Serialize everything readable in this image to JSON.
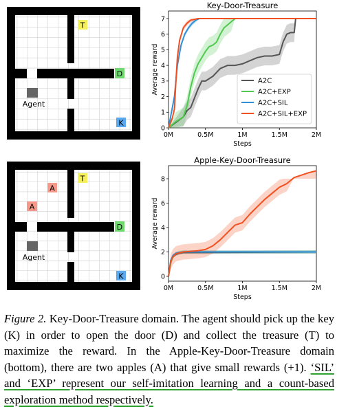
{
  "colors": {
    "wall": "#000000",
    "floor_grid": "#d0d0d0",
    "treasure": "#f3f05c",
    "door": "#6fd86f",
    "key": "#5aa9ee",
    "apple": "#f59a8a",
    "agent": "#666666",
    "a2c": "#555555",
    "a2c_exp": "#4fc94f",
    "a2c_sil": "#2f8fd8",
    "a2c_sil_exp": "#f25020"
  },
  "maps": [
    {
      "cells": [
        {
          "letter": "T",
          "kind": "treasure"
        },
        {
          "letter": "D",
          "kind": "door"
        },
        {
          "letter": "K",
          "kind": "key"
        }
      ],
      "agent_label": "Agent"
    },
    {
      "cells": [
        {
          "letter": "T",
          "kind": "treasure"
        },
        {
          "letter": "A",
          "kind": "apple"
        },
        {
          "letter": "A",
          "kind": "apple"
        },
        {
          "letter": "D",
          "kind": "door"
        },
        {
          "letter": "K",
          "kind": "key"
        }
      ],
      "agent_label": "Agent"
    }
  ],
  "chart_data": [
    {
      "type": "line",
      "title": "Key-Door-Treasure",
      "xlabel": "Steps",
      "ylabel": "Average reward",
      "xlim": [
        0,
        2
      ],
      "ylim": [
        0,
        7
      ],
      "x_ticks": [
        "0M",
        "0.5M",
        "1M",
        "1.5M",
        "2M"
      ],
      "y_ticks": [
        "0",
        "1",
        "2",
        "3",
        "4",
        "5",
        "6",
        "7"
      ],
      "legend_position": "bottom-right",
      "series": [
        {
          "name": "A2C",
          "color_key": "a2c",
          "x": [
            0,
            0.2,
            0.25,
            0.3,
            0.4,
            0.45,
            0.5,
            0.6,
            0.7,
            0.8,
            0.9,
            1.0,
            1.1,
            1.2,
            1.3,
            1.4,
            1.5,
            1.55,
            1.6,
            1.65,
            1.7,
            1.72,
            1.8,
            2.0
          ],
          "y": [
            0,
            0.7,
            1.1,
            1.3,
            2.5,
            3.0,
            3.0,
            3.3,
            3.8,
            4.0,
            4.0,
            4.1,
            4.3,
            4.5,
            4.6,
            4.6,
            4.7,
            5.5,
            6.0,
            6.1,
            6.1,
            7.0,
            7.0,
            7.0
          ]
        },
        {
          "name": "A2C+EXP",
          "color_key": "a2c_exp",
          "x": [
            0,
            0.1,
            0.2,
            0.25,
            0.3,
            0.35,
            0.4,
            0.45,
            0.5,
            0.55,
            0.6,
            0.65,
            0.7,
            0.75,
            0.8,
            0.85,
            0.9,
            2.0
          ],
          "y": [
            0,
            0.4,
            0.7,
            1.4,
            2.6,
            3.5,
            4.1,
            4.5,
            4.9,
            5.2,
            5.3,
            5.5,
            6.0,
            6.4,
            6.6,
            6.8,
            7.0,
            7.0
          ]
        },
        {
          "name": "A2C+SIL",
          "color_key": "a2c_sil",
          "x": [
            0,
            0.08,
            0.12,
            0.17,
            0.22,
            0.27,
            0.32,
            0.37,
            0.42,
            0.5,
            2.0
          ],
          "y": [
            0,
            2.0,
            4.0,
            5.3,
            6.0,
            6.4,
            6.7,
            6.9,
            7.0,
            7.0,
            7.0
          ]
        },
        {
          "name": "A2C+SIL+EXP",
          "color_key": "a2c_sil_exp",
          "x": [
            0,
            0.05,
            0.08,
            0.1,
            0.12,
            0.15,
            0.2,
            0.25,
            0.3,
            0.4,
            2.0
          ],
          "y": [
            0,
            0.6,
            1.2,
            3.0,
            4.5,
            5.6,
            6.4,
            6.7,
            6.9,
            7.0,
            7.0
          ]
        }
      ]
    },
    {
      "type": "line",
      "title": "Apple-Key-Door-Treasure",
      "xlabel": "Steps",
      "ylabel": "Average reward",
      "xlim": [
        0,
        2
      ],
      "ylim": [
        0,
        9
      ],
      "x_ticks": [
        "0M",
        "0.5M",
        "1M",
        "1.5M",
        "2M"
      ],
      "y_ticks": [
        "0",
        "2",
        "4",
        "6",
        "8"
      ],
      "series": [
        {
          "name": "A2C",
          "color_key": "a2c",
          "x": [
            0,
            0.03,
            0.06,
            0.1,
            0.15,
            0.2,
            2.0
          ],
          "y": [
            0,
            1.2,
            1.6,
            1.8,
            1.9,
            1.95,
            2.0
          ]
        },
        {
          "name": "A2C+EXP",
          "color_key": "a2c_exp",
          "x": [
            0,
            0.03,
            0.06,
            0.1,
            0.15,
            0.2,
            2.0
          ],
          "y": [
            0,
            1.1,
            1.6,
            1.85,
            1.95,
            2.0,
            2.0
          ]
        },
        {
          "name": "A2C+SIL",
          "color_key": "a2c_sil",
          "x": [
            0,
            0.03,
            0.06,
            0.1,
            0.15,
            0.2,
            2.0
          ],
          "y": [
            0,
            1.3,
            1.7,
            1.9,
            1.95,
            2.0,
            2.0
          ]
        },
        {
          "name": "A2C+SIL+EXP",
          "color_key": "a2c_sil_exp",
          "x": [
            0,
            0.03,
            0.06,
            0.1,
            0.2,
            0.4,
            0.5,
            0.6,
            0.7,
            0.8,
            0.9,
            1.0,
            1.1,
            1.2,
            1.3,
            1.4,
            1.5,
            1.55,
            1.6,
            1.7,
            1.8,
            1.9,
            2.0
          ],
          "y": [
            0,
            1.2,
            1.6,
            1.85,
            2.0,
            2.1,
            2.2,
            2.5,
            3.0,
            3.6,
            4.2,
            4.4,
            5.1,
            5.7,
            6.3,
            6.8,
            7.3,
            7.45,
            7.6,
            8.1,
            8.3,
            8.5,
            8.65
          ]
        }
      ]
    }
  ],
  "caption": {
    "label": "Figure 2.",
    "text": " Key-Door-Treasure domain. The agent should pick up the key (K) in order to open the door (D) and collect the treasure (T) to maximize the reward. In the Apple-Key-Door-Treasure domain (bottom), there are two apples (A) that give small rewards (+1). ",
    "highlight": "‘SIL’ and ‘EXP’ represent our self-imitation learning and a count-based exploration method respectively."
  }
}
